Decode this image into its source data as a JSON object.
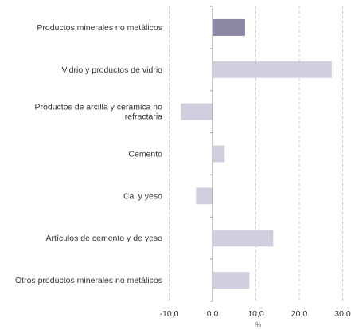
{
  "chart_data": {
    "type": "bar",
    "orientation": "horizontal",
    "categories": [
      [
        "Productos minerales no metálicos"
      ],
      [
        "Vidrio y productos de vidrio"
      ],
      [
        "Productos de arcilla y cerámica no",
        "refractaria"
      ],
      [
        "Cemento"
      ],
      [
        "Cal y yeso"
      ],
      [
        "Artículos de cemento y de yeso"
      ],
      [
        "Otros productos minerales no metálicos"
      ]
    ],
    "values": [
      7.5,
      27.5,
      -7.3,
      2.8,
      -3.8,
      14.0,
      8.5
    ],
    "highlight_index": 0,
    "xlim": [
      -10,
      30
    ],
    "xticks": [
      -10,
      0,
      10,
      20,
      30
    ],
    "xtick_labels": [
      "-10,0",
      "0,0",
      "10,0",
      "20,0",
      "30,0"
    ],
    "xlabel": "%",
    "ylabel": "",
    "title": "",
    "grid": "vertical-dashed",
    "legend": "none",
    "colors": {
      "highlight": "#8c88a5",
      "bar": "#d0cfe0",
      "grid": "#c8c8c8",
      "axis": "#999999"
    }
  }
}
